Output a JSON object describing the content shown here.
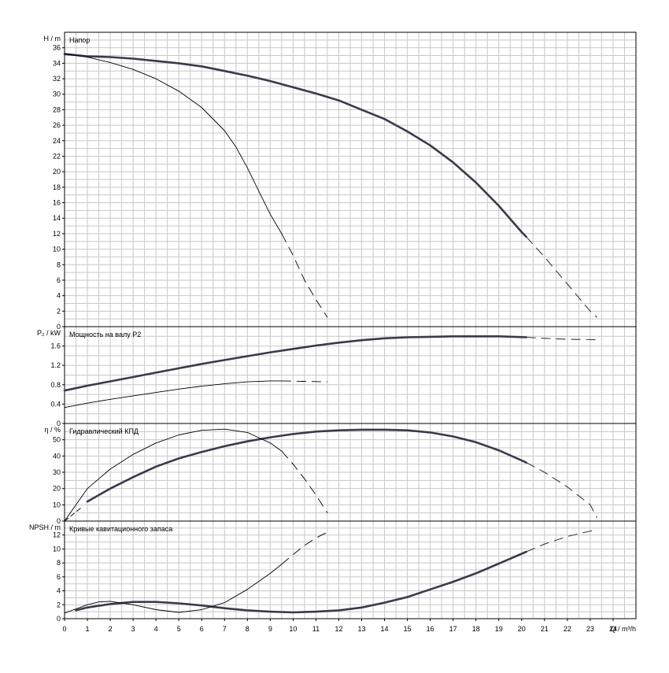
{
  "chart_data": [
    {
      "type": "line",
      "title": "Напор",
      "ylabel": "H / m",
      "ylim": [
        0,
        38
      ],
      "y_ticks": [
        0,
        2,
        4,
        6,
        8,
        10,
        12,
        14,
        16,
        18,
        20,
        22,
        24,
        26,
        28,
        30,
        32,
        34,
        36
      ],
      "series": [
        {
          "style": "thick",
          "points": [
            [
              0,
              35.2
            ],
            [
              1,
              34.9
            ],
            [
              2,
              34.8
            ],
            [
              3,
              34.6
            ],
            [
              4,
              34.3
            ],
            [
              5,
              34.0
            ],
            [
              6,
              33.6
            ],
            [
              7,
              33.0
            ],
            [
              8,
              32.4
            ],
            [
              9,
              31.7
            ],
            [
              10,
              30.9
            ],
            [
              11,
              30.1
            ],
            [
              12,
              29.2
            ],
            [
              13,
              28.0
            ],
            [
              14,
              26.8
            ],
            [
              15,
              25.2
            ],
            [
              16,
              23.4
            ],
            [
              17,
              21.2
            ],
            [
              18,
              18.6
            ],
            [
              19,
              15.6
            ],
            [
              20,
              12.2
            ],
            [
              20.2,
              11.6
            ]
          ],
          "dashed_points": [
            [
              20.2,
              11.6
            ],
            [
              21,
              9.0
            ],
            [
              22,
              5.5
            ],
            [
              23,
              2.0
            ],
            [
              23.3,
              1.2
            ]
          ]
        },
        {
          "style": "thin",
          "points": [
            [
              0,
              35.2
            ],
            [
              1,
              34.8
            ],
            [
              2,
              34.1
            ],
            [
              3,
              33.2
            ],
            [
              4,
              32.0
            ],
            [
              5,
              30.4
            ],
            [
              6,
              28.3
            ],
            [
              7,
              25.3
            ],
            [
              7.5,
              23.2
            ],
            [
              8,
              20.5
            ],
            [
              8.5,
              17.5
            ],
            [
              9,
              14.5
            ],
            [
              9.5,
              12.0
            ]
          ],
          "dashed_points": [
            [
              9.5,
              12.0
            ],
            [
              10,
              9.2
            ],
            [
              10.5,
              6.0
            ],
            [
              11,
              3.5
            ],
            [
              11.5,
              1.2
            ]
          ]
        }
      ]
    },
    {
      "type": "line",
      "title": "Мощность на валу P2",
      "ylabel": "P₂ / kW",
      "ylim": [
        0,
        2.0
      ],
      "y_ticks": [
        0,
        0.4,
        0.8,
        1.2,
        1.6
      ],
      "series": [
        {
          "style": "thick",
          "points": [
            [
              0,
              0.68
            ],
            [
              1,
              0.78
            ],
            [
              2,
              0.87
            ],
            [
              3,
              0.96
            ],
            [
              4,
              1.05
            ],
            [
              5,
              1.14
            ],
            [
              6,
              1.23
            ],
            [
              7,
              1.31
            ],
            [
              8,
              1.39
            ],
            [
              9,
              1.47
            ],
            [
              10,
              1.54
            ],
            [
              11,
              1.61
            ],
            [
              12,
              1.67
            ],
            [
              13,
              1.72
            ],
            [
              14,
              1.76
            ],
            [
              15,
              1.78
            ],
            [
              16,
              1.79
            ],
            [
              17,
              1.8
            ],
            [
              18,
              1.8
            ],
            [
              19,
              1.8
            ],
            [
              20.2,
              1.78
            ]
          ],
          "dashed_points": [
            [
              20.2,
              1.78
            ],
            [
              21,
              1.76
            ],
            [
              22,
              1.74
            ],
            [
              23.3,
              1.73
            ]
          ]
        },
        {
          "style": "thin",
          "points": [
            [
              0,
              0.33
            ],
            [
              1,
              0.42
            ],
            [
              2,
              0.5
            ],
            [
              3,
              0.57
            ],
            [
              4,
              0.64
            ],
            [
              5,
              0.71
            ],
            [
              6,
              0.77
            ],
            [
              7,
              0.82
            ],
            [
              8,
              0.86
            ],
            [
              9,
              0.88
            ],
            [
              9.5,
              0.88
            ]
          ],
          "dashed_points": [
            [
              9.5,
              0.88
            ],
            [
              10.5,
              0.87
            ],
            [
              11.5,
              0.86
            ]
          ]
        }
      ]
    },
    {
      "type": "line",
      "title": "Гидравлический КПД",
      "ylabel": "η / %",
      "ylim": [
        0,
        60
      ],
      "y_ticks": [
        0,
        10,
        20,
        30,
        40,
        50
      ],
      "series": [
        {
          "style": "thick",
          "points": [
            [
              1,
              12.0
            ],
            [
              2,
              20.0
            ],
            [
              3,
              27.0
            ],
            [
              4,
              33.5
            ],
            [
              5,
              38.5
            ],
            [
              6,
              42.5
            ],
            [
              7,
              46.0
            ],
            [
              8,
              49.0
            ],
            [
              9,
              51.5
            ],
            [
              10,
              53.5
            ],
            [
              11,
              55.0
            ],
            [
              12,
              55.8
            ],
            [
              13,
              56.2
            ],
            [
              14,
              56.2
            ],
            [
              15,
              55.8
            ],
            [
              16,
              54.5
            ],
            [
              17,
              52.0
            ],
            [
              18,
              48.5
            ],
            [
              19,
              43.5
            ],
            [
              20.2,
              36.0
            ]
          ],
          "dashed_points": [
            [
              20.2,
              36.0
            ],
            [
              21,
              30.0
            ],
            [
              22,
              21.0
            ],
            [
              23,
              10.0
            ],
            [
              23.3,
              2.0
            ]
          ]
        },
        {
          "style": "thin",
          "points": [
            [
              0,
              0
            ],
            [
              1,
              20.0
            ],
            [
              2,
              32.0
            ],
            [
              3,
              41.0
            ],
            [
              4,
              48.0
            ],
            [
              5,
              53.0
            ],
            [
              6,
              55.8
            ],
            [
              7,
              56.5
            ],
            [
              8,
              54.5
            ],
            [
              9,
              48.0
            ],
            [
              9.5,
              43.0
            ]
          ],
          "dashed_points": [
            [
              9.5,
              43.0
            ],
            [
              10,
              35.0
            ],
            [
              10.5,
              26.0
            ],
            [
              11,
              16.0
            ],
            [
              11.5,
              5.0
            ]
          ]
        },
        {
          "style": "thin-dashed",
          "points": [
            [
              0,
              0
            ],
            [
              0.8,
              9.0
            ]
          ]
        }
      ]
    },
    {
      "type": "line",
      "title": "Кривые кавитационного запаса",
      "ylabel": "NPSH / m",
      "xlabel": "Q / m³/h",
      "ylim": [
        0,
        14
      ],
      "xlim": [
        0,
        25
      ],
      "y_ticks": [
        0,
        2,
        4,
        6,
        8,
        10,
        12
      ],
      "x_ticks": [
        0,
        1,
        2,
        3,
        4,
        5,
        6,
        7,
        8,
        9,
        10,
        11,
        12,
        13,
        14,
        15,
        16,
        17,
        18,
        19,
        20,
        21,
        22,
        23,
        24
      ],
      "series": [
        {
          "style": "thick",
          "points": [
            [
              0.5,
              1.2
            ],
            [
              1,
              1.6
            ],
            [
              2,
              2.1
            ],
            [
              3,
              2.4
            ],
            [
              4,
              2.4
            ],
            [
              5,
              2.2
            ],
            [
              6,
              1.9
            ],
            [
              7,
              1.5
            ],
            [
              8,
              1.2
            ],
            [
              9,
              1.0
            ],
            [
              10,
              0.9
            ],
            [
              11,
              1.0
            ],
            [
              12,
              1.2
            ],
            [
              13,
              1.6
            ],
            [
              14,
              2.3
            ],
            [
              15,
              3.1
            ],
            [
              16,
              4.2
            ],
            [
              17,
              5.3
            ],
            [
              18,
              6.5
            ],
            [
              19,
              7.9
            ],
            [
              20.2,
              9.6
            ]
          ],
          "dashed_points": [
            [
              20.2,
              9.6
            ],
            [
              21,
              10.7
            ],
            [
              22,
              11.8
            ],
            [
              23.3,
              12.8
            ]
          ]
        },
        {
          "style": "thin",
          "points": [
            [
              0,
              0.8
            ],
            [
              1,
              2.0
            ],
            [
              1.5,
              2.4
            ],
            [
              2,
              2.5
            ],
            [
              3,
              2.0
            ],
            [
              4,
              1.3
            ],
            [
              5,
              0.9
            ],
            [
              6,
              1.3
            ],
            [
              7,
              2.3
            ],
            [
              8,
              4.2
            ],
            [
              9,
              6.5
            ],
            [
              9.5,
              7.8
            ]
          ],
          "dashed_points": [
            [
              9.5,
              7.8
            ],
            [
              10,
              9.2
            ],
            [
              10.5,
              10.5
            ],
            [
              11,
              11.6
            ],
            [
              11.5,
              12.4
            ]
          ]
        }
      ]
    }
  ]
}
